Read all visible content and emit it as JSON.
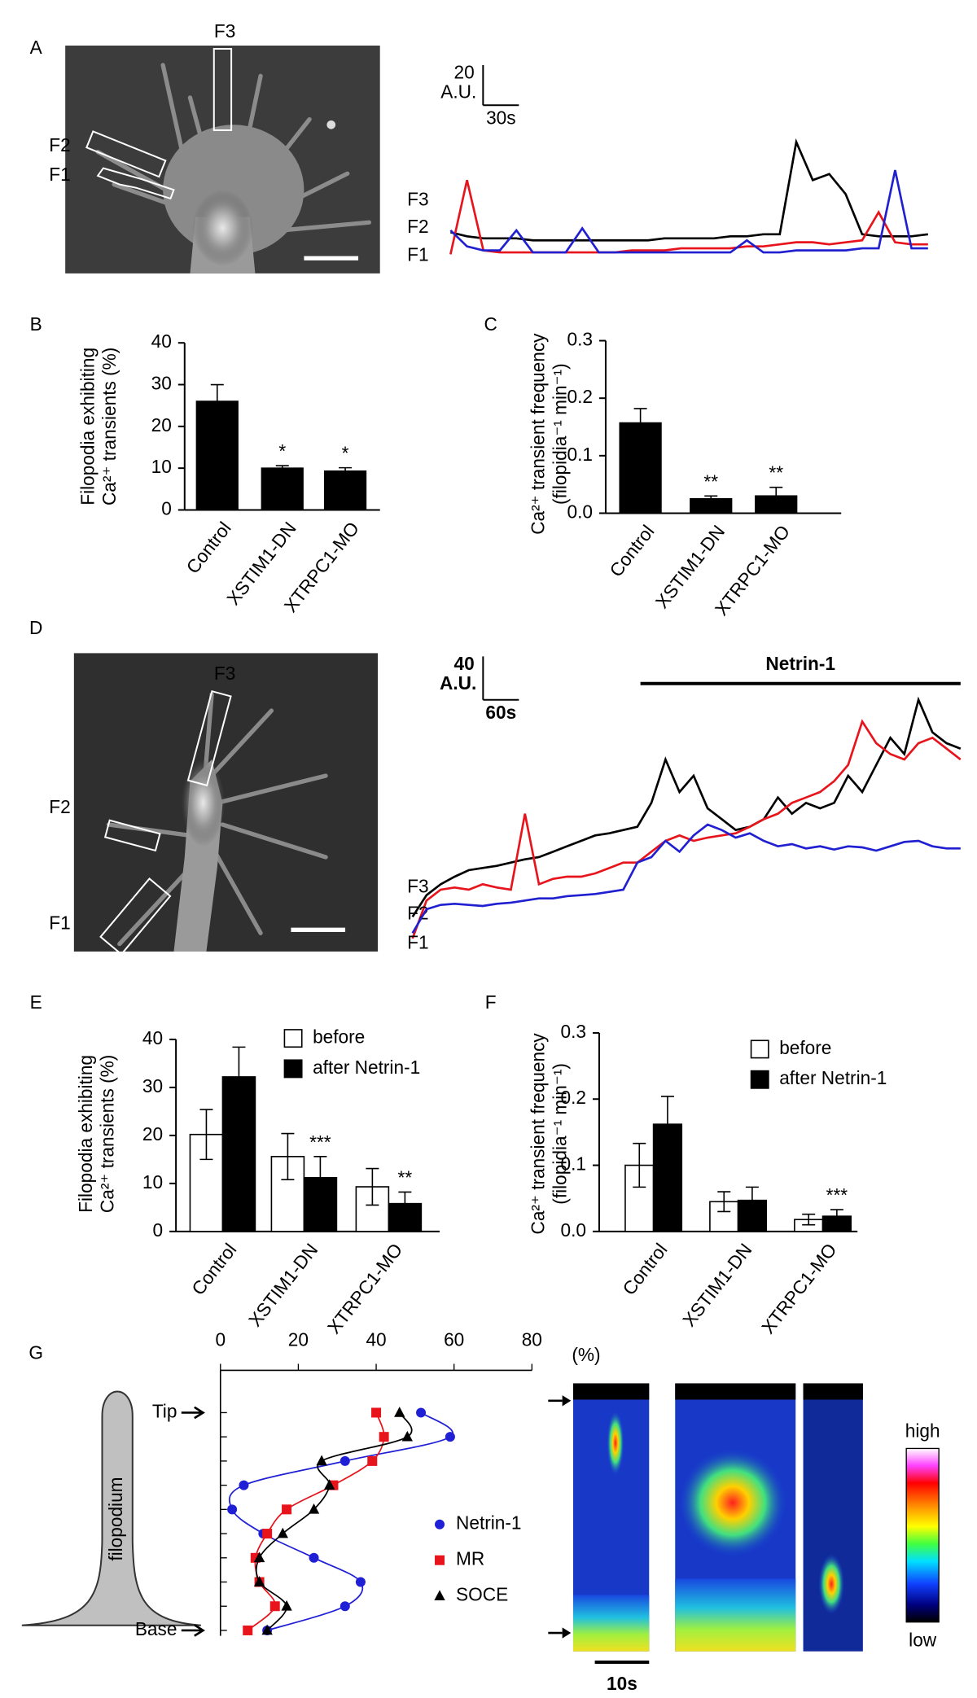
{
  "chart_data": [
    {
      "type": "image",
      "panel": "A",
      "roi_labels": [
        {
          "text": "F3",
          "color": "#000000"
        },
        {
          "text": "F2",
          "color": "#e8141c"
        },
        {
          "text": "F1",
          "color": "#2020d0"
        }
      ]
    },
    {
      "type": "trace",
      "scale_y": 20,
      "scale_y_unit": "A.U.",
      "scale_x_label": "30s",
      "ylim": [
        0,
        60
      ],
      "series": [
        {
          "name": "F3",
          "color": "#000000",
          "values": [
            14,
            12,
            11,
            11,
            11,
            10,
            10,
            10,
            10,
            10,
            10,
            10,
            10,
            11,
            11,
            11,
            11,
            12,
            12,
            13,
            13,
            59,
            40,
            43,
            33,
            13,
            12,
            12,
            12,
            13
          ]
        },
        {
          "name": "F2",
          "color": "#e8141c",
          "values": [
            3,
            40,
            5,
            4,
            4,
            4,
            4,
            4,
            4,
            4,
            4,
            5,
            5,
            5,
            6,
            6,
            6,
            6,
            7,
            7,
            8,
            9,
            9,
            8,
            9,
            10,
            24,
            9,
            8,
            8
          ]
        },
        {
          "name": "F1",
          "color": "#2020d0",
          "values": [
            15,
            7,
            5,
            5,
            15,
            4,
            4,
            4,
            16,
            4,
            4,
            4,
            4,
            4,
            4,
            4,
            4,
            4,
            10,
            4,
            4,
            5,
            5,
            5,
            5,
            6,
            6,
            45,
            6,
            6
          ]
        }
      ]
    },
    {
      "type": "bar",
      "panel": "B",
      "y_label": [
        "Filopodia exhibiting",
        "Ca²⁺ transients (%)"
      ],
      "categories": [
        "Control",
        "XSTIM1-DN",
        "XTRPC1-MO"
      ],
      "values": [
        26,
        10,
        9.3
      ],
      "errors": [
        4,
        0.6,
        0.8
      ],
      "color": "#000000",
      "significance": [
        null,
        "*",
        "*"
      ],
      "ylim": [
        0,
        40
      ],
      "yticks": [
        0,
        10,
        20,
        30,
        40
      ]
    },
    {
      "type": "bar",
      "panel": "C",
      "y_label": [
        "Ca²⁺ transient frequency",
        "(filopidia⁻¹ min⁻¹)"
      ],
      "categories": [
        "Control",
        "XSTIM1-DN",
        "XTRPC1-MO"
      ],
      "values": [
        0.157,
        0.025,
        0.03
      ],
      "errors": [
        0.025,
        0.005,
        0.015
      ],
      "color": "#000000",
      "significance": [
        null,
        "**",
        "**"
      ],
      "ylim": [
        0,
        0.3
      ],
      "yticks": [
        {
          "value": 0,
          "label": "0.0"
        },
        0.1,
        0.2,
        0.3
      ]
    },
    {
      "type": "image",
      "panel": "D",
      "roi_labels": [
        {
          "text": "F3",
          "color": "#ffffff"
        },
        {
          "text": "F2",
          "color": "#e8141c"
        },
        {
          "text": "F1",
          "color": "#2020d0"
        }
      ]
    },
    {
      "type": "trace",
      "scale_y": 40,
      "scale_y_unit": "A.U.",
      "scale_x_label": "60s",
      "event_label": "Netrin-1",
      "ylim": [
        0,
        260
      ],
      "series": [
        {
          "name": "F3",
          "color": "#000000",
          "values": [
            35,
            55,
            65,
            72,
            78,
            80,
            82,
            85,
            88,
            90,
            95,
            100,
            105,
            110,
            112,
            115,
            118,
            140,
            180,
            150,
            165,
            135,
            125,
            115,
            118,
            125,
            145,
            130,
            140,
            135,
            140,
            165,
            150,
            175,
            200,
            185,
            235,
            205,
            195,
            190
          ]
        },
        {
          "name": "F2",
          "color": "#e8141c",
          "values": [
            15,
            50,
            60,
            62,
            60,
            65,
            62,
            60,
            130,
            65,
            70,
            72,
            72,
            75,
            80,
            85,
            85,
            95,
            105,
            110,
            105,
            108,
            110,
            112,
            118,
            125,
            130,
            140,
            145,
            150,
            160,
            175,
            215,
            195,
            185,
            180,
            195,
            200,
            190,
            180
          ]
        },
        {
          "name": "F1",
          "color": "#2020d0",
          "values": [
            20,
            42,
            46,
            47,
            46,
            45,
            47,
            48,
            50,
            52,
            52,
            54,
            55,
            56,
            58,
            60,
            85,
            90,
            105,
            95,
            110,
            120,
            115,
            108,
            112,
            105,
            100,
            102,
            98,
            100,
            97,
            100,
            99,
            96,
            100,
            104,
            105,
            100,
            98,
            98
          ]
        }
      ]
    },
    {
      "type": "bar",
      "panel": "E",
      "y_label": [
        "Filopodia exhibiting",
        "Ca²⁺ transients (%)"
      ],
      "categories": [
        "Control",
        "XSTIM1-DN",
        "XTRPC1-MO"
      ],
      "series": [
        {
          "name": "before",
          "color": "#ffffff",
          "values": [
            20.2,
            15.6,
            9.3
          ],
          "errors": [
            5.2,
            4.8,
            3.8
          ]
        },
        {
          "name": "after Netrin-1",
          "color": "#000000",
          "values": [
            32.2,
            11.2,
            5.8
          ],
          "errors": [
            6.2,
            4.4,
            2.4
          ]
        }
      ],
      "significance": [
        null,
        "***",
        "**"
      ],
      "ylim": [
        0,
        40
      ],
      "yticks": [
        0,
        10,
        20,
        30,
        40
      ]
    },
    {
      "type": "bar",
      "panel": "F",
      "y_label": [
        "Ca²⁺ transient frequency",
        "(filopidia⁻¹ min⁻¹)"
      ],
      "categories": [
        "Control",
        "XSTIM1-DN",
        "XTRPC1-MO"
      ],
      "series": [
        {
          "name": "before",
          "color": "#ffffff",
          "values": [
            0.1,
            0.045,
            0.018
          ],
          "errors": [
            0.033,
            0.015,
            0.008
          ]
        },
        {
          "name": "after Netrin-1",
          "color": "#000000",
          "values": [
            0.162,
            0.047,
            0.023
          ],
          "errors": [
            0.042,
            0.02,
            0.01
          ]
        }
      ],
      "significance": [
        null,
        null,
        "***"
      ],
      "ylim": [
        0,
        0.3
      ],
      "yticks": [
        {
          "value": 0,
          "label": "0.0"
        },
        0.1,
        0.2,
        0.3
      ]
    },
    {
      "type": "diagram",
      "panel": "G",
      "label": "filopodium"
    },
    {
      "type": "line",
      "x_unit": "(%)",
      "xlim": [
        0,
        80
      ],
      "xticks": [
        0,
        20,
        40,
        60,
        80
      ],
      "categories": [
        "Tip",
        null,
        null,
        null,
        null,
        null,
        null,
        null,
        null,
        "Base"
      ],
      "series": [
        {
          "name": "Netrin-1",
          "color": "#1f1fd6",
          "marker": "circle",
          "values": [
            51.5,
            59,
            32,
            6,
            3,
            11,
            24,
            36,
            32,
            12
          ]
        },
        {
          "name": "MR",
          "color": "#e8141c",
          "marker": "square",
          "values": [
            40,
            42,
            39,
            29,
            17,
            12,
            9,
            10,
            14,
            7
          ]
        },
        {
          "name": "SOCE",
          "color": "#000000",
          "marker": "triangle",
          "values": [
            46,
            48,
            26,
            28,
            24,
            16,
            10,
            10,
            17,
            12
          ]
        }
      ]
    },
    {
      "type": "heatmap",
      "scale_x_label": "10s",
      "colorbar_labels": [
        "high",
        "low"
      ]
    }
  ]
}
